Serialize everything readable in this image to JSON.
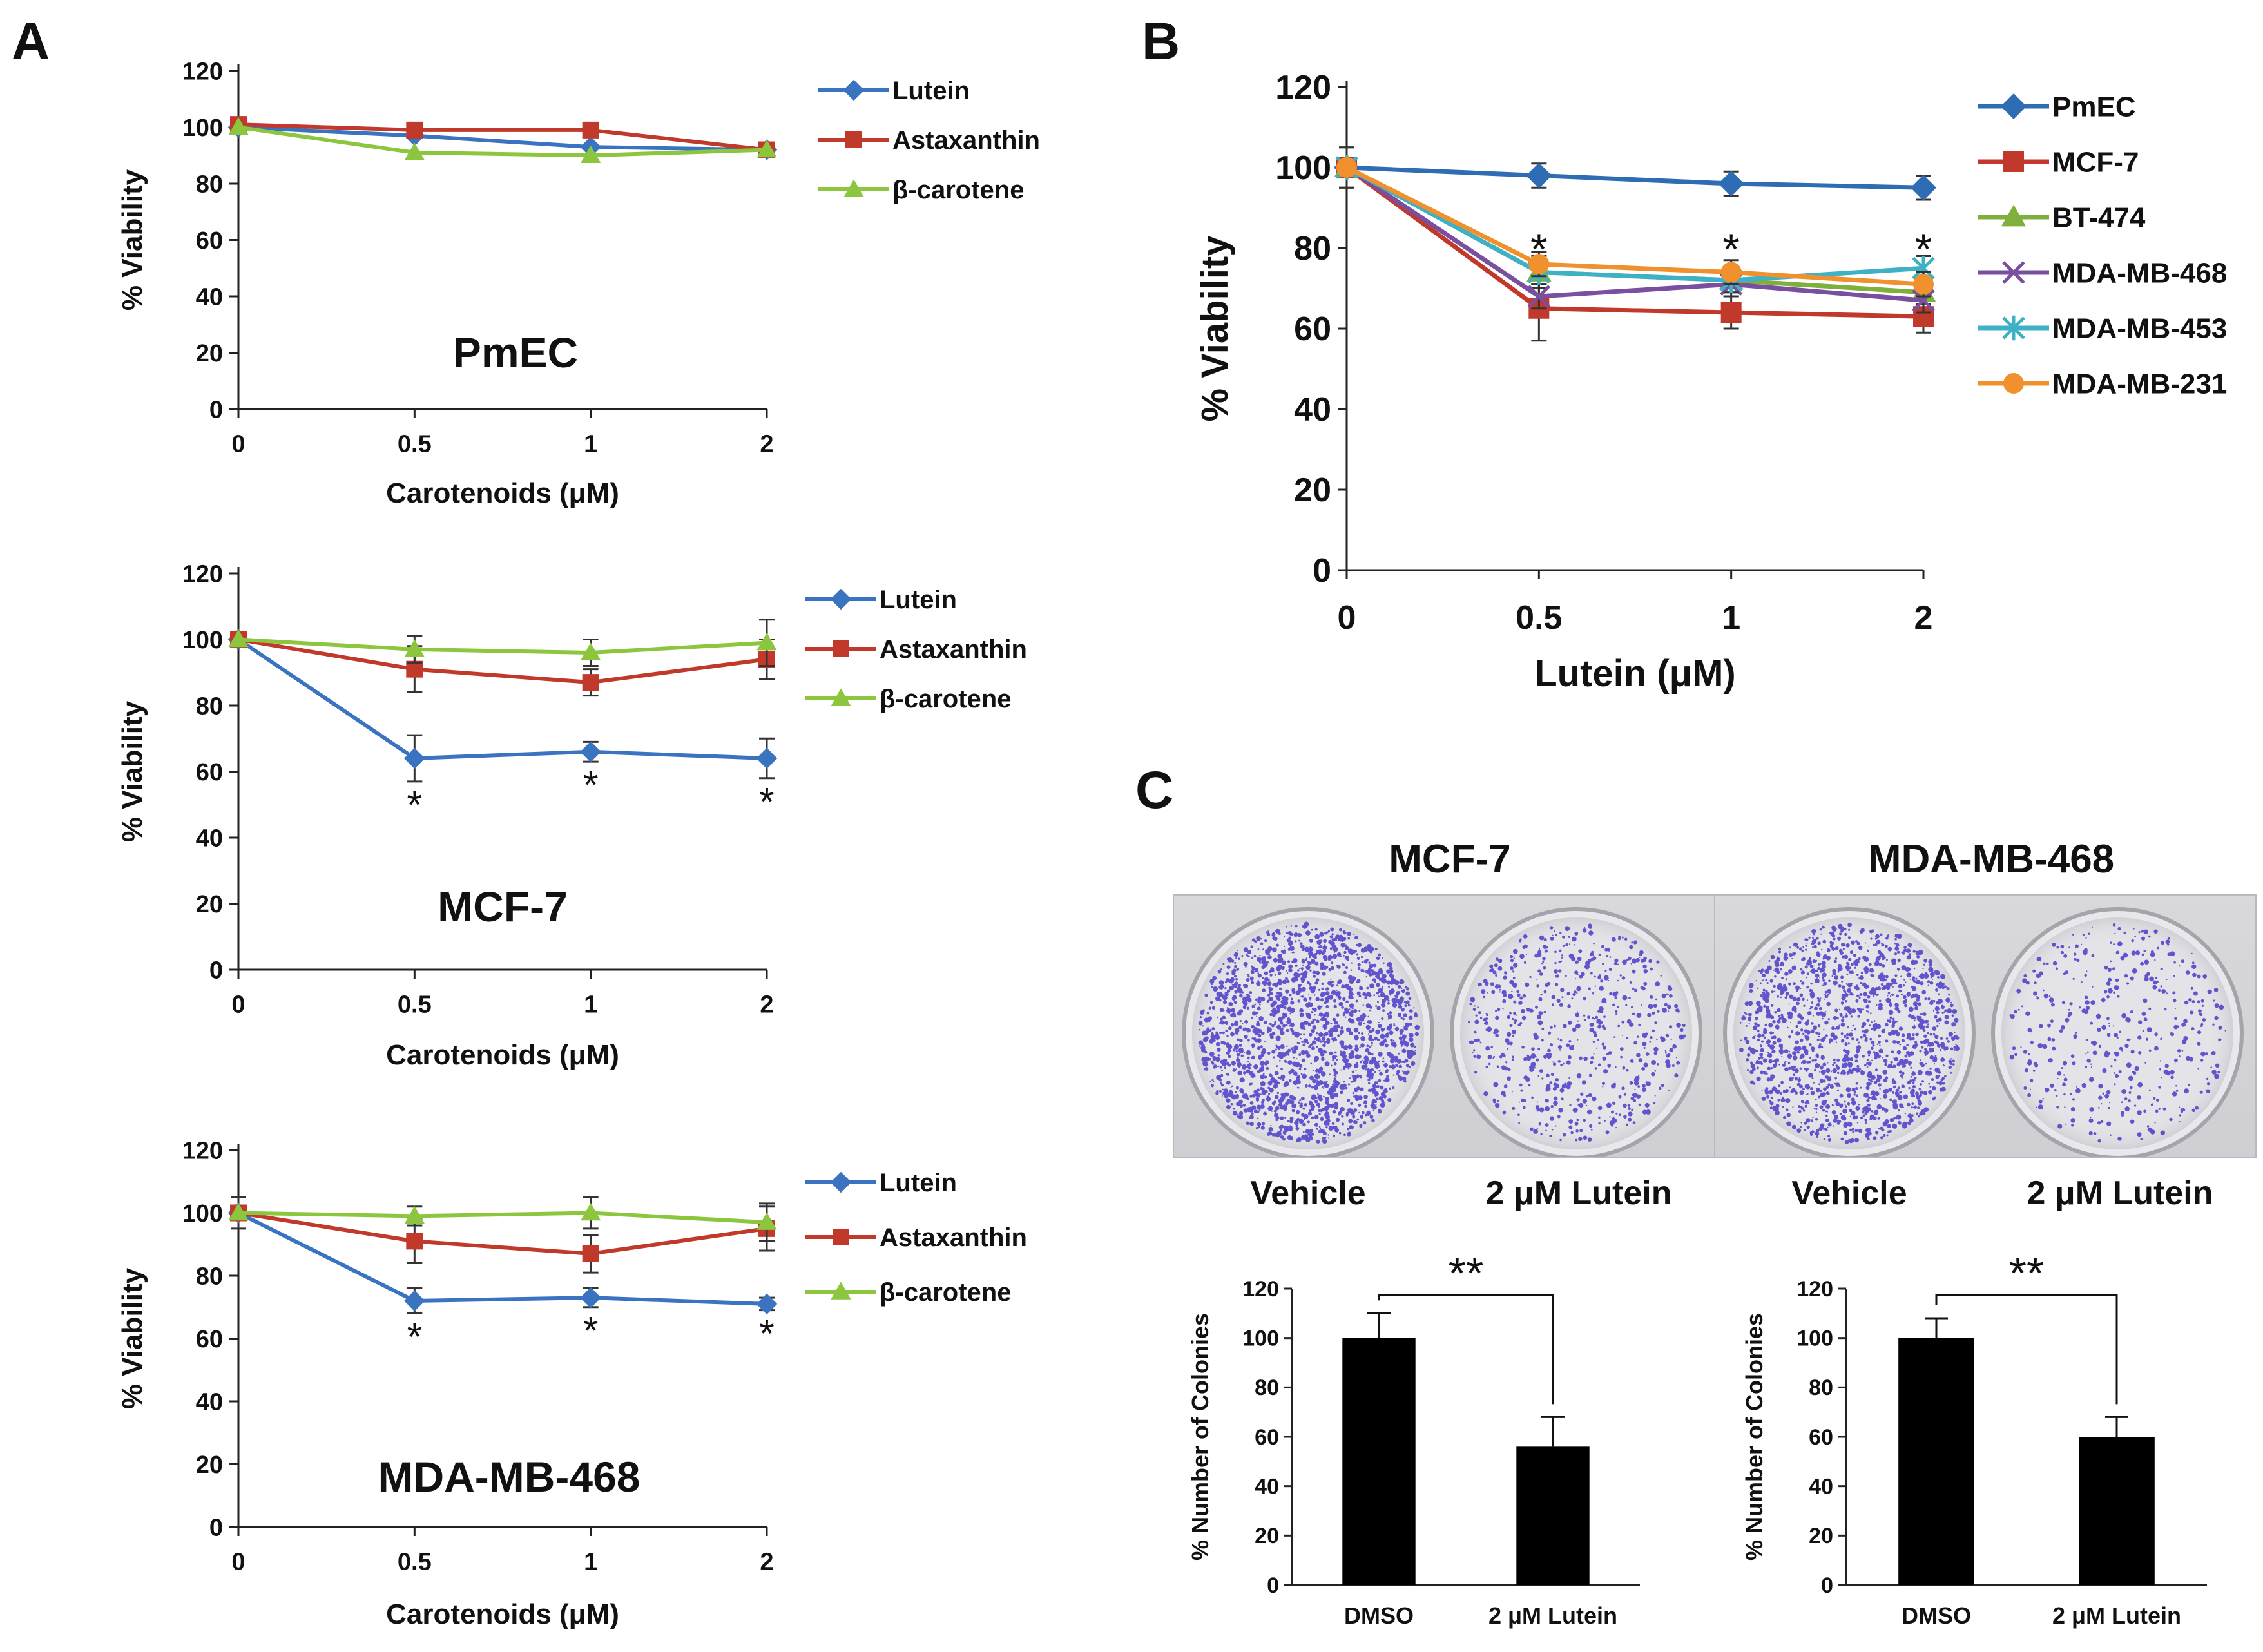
{
  "panel_letters": {
    "a": "A",
    "b": "B",
    "c": "C"
  },
  "colors": {
    "lutein": "#3a73c0",
    "astaxanthin": "#c0392b",
    "bcarotene": "#8cc63f",
    "pmec": "#2e6db4",
    "mcf7": "#c0392b",
    "bt474": "#7fb03c",
    "mdamb468": "#7a4fa0",
    "mdamb453": "#3fb1c4",
    "mdamb231": "#f0912d",
    "bar": "#000000",
    "colony": "#4a3cc8"
  },
  "chart_data": [
    {
      "id": "A1",
      "type": "line",
      "panel": "A",
      "title": "PmEC",
      "xlabel": "Carotenoids (μM)",
      "ylabel": "% Viability",
      "categories": [
        "0",
        "0.5",
        "1",
        "2"
      ],
      "ylim": [
        0,
        120
      ],
      "yticks": [
        0,
        20,
        40,
        60,
        80,
        100,
        120
      ],
      "legend_position": "top-right",
      "series": [
        {
          "name": "Lutein",
          "color_key": "lutein",
          "marker": "diamond",
          "values": [
            100,
            97,
            93,
            92
          ],
          "errors": [
            0,
            0,
            0,
            0
          ],
          "stars": []
        },
        {
          "name": "Astaxanthin",
          "color_key": "astaxanthin",
          "marker": "square",
          "values": [
            101,
            99,
            99,
            92
          ],
          "errors": [
            0,
            0,
            0,
            0
          ],
          "stars": []
        },
        {
          "name": "β-carotene",
          "color_key": "bcarotene",
          "marker": "triangle",
          "values": [
            100,
            91,
            90,
            92
          ],
          "errors": [
            0,
            0,
            0,
            0
          ],
          "stars": []
        }
      ],
      "star_symbol": "*"
    },
    {
      "id": "A2",
      "type": "line",
      "panel": "A",
      "title": "MCF-7",
      "xlabel": "Carotenoids (μM)",
      "ylabel": "% Viability",
      "categories": [
        "0",
        "0.5",
        "1",
        "2"
      ],
      "ylim": [
        0,
        120
      ],
      "yticks": [
        0,
        20,
        40,
        60,
        80,
        100,
        120
      ],
      "legend_position": "top-right",
      "series": [
        {
          "name": "Lutein",
          "color_key": "lutein",
          "marker": "diamond",
          "values": [
            100,
            64,
            66,
            64
          ],
          "errors": [
            0,
            7,
            3,
            6
          ],
          "stars": [
            1,
            2,
            3
          ]
        },
        {
          "name": "Astaxanthin",
          "color_key": "astaxanthin",
          "marker": "square",
          "values": [
            100,
            91,
            87,
            94
          ],
          "errors": [
            0,
            7,
            4,
            6
          ],
          "stars": []
        },
        {
          "name": "β-carotene",
          "color_key": "bcarotene",
          "marker": "triangle",
          "values": [
            100,
            97,
            96,
            99
          ],
          "errors": [
            0,
            4,
            4,
            7
          ],
          "stars": []
        }
      ],
      "star_symbol": "*"
    },
    {
      "id": "A3",
      "type": "line",
      "panel": "A",
      "title": "MDA-MB-468",
      "xlabel": "Carotenoids (μM)",
      "ylabel": "% Viability",
      "categories": [
        "0",
        "0.5",
        "1",
        "2"
      ],
      "ylim": [
        0,
        120
      ],
      "yticks": [
        0,
        20,
        40,
        60,
        80,
        100,
        120
      ],
      "legend_position": "top-right",
      "series": [
        {
          "name": "Lutein",
          "color_key": "lutein",
          "marker": "diamond",
          "values": [
            100,
            72,
            73,
            71
          ],
          "errors": [
            5,
            4,
            3,
            2
          ],
          "stars": [
            1,
            2,
            3
          ]
        },
        {
          "name": "Astaxanthin",
          "color_key": "astaxanthin",
          "marker": "square",
          "values": [
            100,
            91,
            87,
            95
          ],
          "errors": [
            0,
            7,
            6,
            7
          ],
          "stars": []
        },
        {
          "name": "β-carotene",
          "color_key": "bcarotene",
          "marker": "triangle",
          "values": [
            100,
            99,
            100,
            97
          ],
          "errors": [
            0,
            3,
            5,
            6
          ],
          "stars": []
        }
      ],
      "star_symbol": "*"
    },
    {
      "id": "B",
      "type": "line",
      "panel": "B",
      "title": "",
      "xlabel": "Lutein (μM)",
      "ylabel": "% Viability",
      "categories": [
        "0",
        "0.5",
        "1",
        "2"
      ],
      "ylim": [
        0,
        120
      ],
      "yticks": [
        0,
        20,
        40,
        60,
        80,
        100,
        120
      ],
      "legend_position": "top-right",
      "series": [
        {
          "name": "PmEC",
          "color_key": "pmec",
          "marker": "diamond",
          "values": [
            100,
            98,
            96,
            95
          ],
          "errors": [
            5,
            3,
            3,
            3
          ],
          "stars": []
        },
        {
          "name": "MCF-7",
          "color_key": "mcf7",
          "marker": "square",
          "values": [
            100,
            65,
            64,
            63
          ],
          "errors": [
            5,
            8,
            4,
            4
          ],
          "stars": []
        },
        {
          "name": "BT-474",
          "color_key": "bt474",
          "marker": "triangle",
          "values": [
            100,
            74,
            72,
            69
          ],
          "errors": [
            0,
            4,
            3,
            3
          ],
          "stars": []
        },
        {
          "name": "MDA-MB-468",
          "color_key": "mdamb468",
          "marker": "x",
          "values": [
            100,
            68,
            71,
            67
          ],
          "errors": [
            0,
            3,
            3,
            3
          ],
          "stars": []
        },
        {
          "name": "MDA-MB-453",
          "color_key": "mdamb453",
          "marker": "star",
          "values": [
            100,
            74,
            72,
            75
          ],
          "errors": [
            0,
            3,
            3,
            3
          ],
          "stars": []
        },
        {
          "name": "MDA-MB-231",
          "color_key": "mdamb231",
          "marker": "circle",
          "values": [
            100,
            76,
            74,
            71
          ],
          "errors": [
            0,
            3,
            3,
            3
          ],
          "stars": []
        }
      ],
      "star_positions": [
        1,
        2,
        3
      ],
      "star_symbol": "*"
    },
    {
      "id": "C1",
      "type": "bar",
      "panel": "C",
      "title": "",
      "xlabel": "",
      "ylabel": "% Number of Colonies",
      "categories": [
        "DMSO",
        "2 μM Lutein"
      ],
      "values": [
        100,
        56
      ],
      "errors": [
        10,
        12
      ],
      "ylim": [
        0,
        120
      ],
      "yticks": [
        0,
        20,
        40,
        60,
        80,
        100,
        120
      ],
      "significance": "**"
    },
    {
      "id": "C2",
      "type": "bar",
      "panel": "C",
      "title": "",
      "xlabel": "",
      "ylabel": "% Number of Colonies",
      "categories": [
        "DMSO",
        "2 μM Lutein"
      ],
      "values": [
        100,
        60
      ],
      "errors": [
        8,
        8
      ],
      "ylim": [
        0,
        120
      ],
      "yticks": [
        0,
        20,
        40,
        60,
        80,
        100,
        120
      ],
      "significance": "**"
    }
  ],
  "plates": [
    {
      "title": "MCF-7",
      "left_caption": "Vehicle",
      "right_caption": "2 μM Lutein"
    },
    {
      "title": "MDA-MB-468",
      "left_caption": "Vehicle",
      "right_caption": "2 μM Lutein"
    }
  ]
}
